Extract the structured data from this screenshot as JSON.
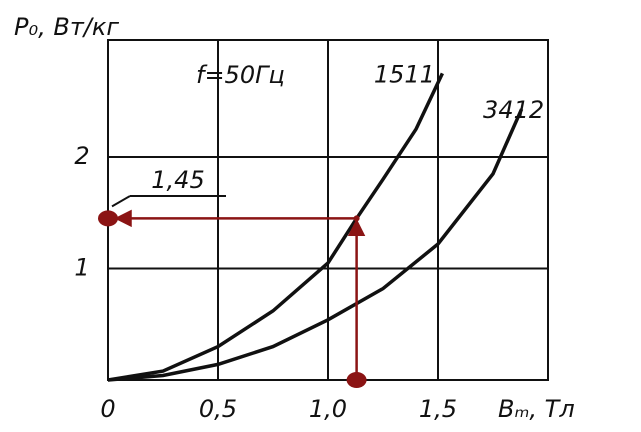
{
  "chart_data": {
    "type": "line",
    "y_label": "P₀, Вт/кг",
    "x_label": "Bₘ, Тл",
    "note": "f=50Гц",
    "xlim": [
      0,
      2.0
    ],
    "ylim": [
      0,
      3.05
    ],
    "xticks": [
      0,
      {
        "value": 0.5,
        "label": "0,5"
      },
      {
        "value": 1.0,
        "label": "1,0"
      },
      {
        "value": 1.5,
        "label": "1,5"
      }
    ],
    "yticks": [
      1,
      2
    ],
    "grid": true,
    "series": [
      {
        "name": "1511",
        "color": "#111111",
        "x": [
          0,
          0.25,
          0.5,
          0.75,
          1.0,
          1.13,
          1.25,
          1.4,
          1.52
        ],
        "values": [
          0,
          0.08,
          0.3,
          0.62,
          1.05,
          1.45,
          1.8,
          2.25,
          2.75
        ]
      },
      {
        "name": "3412",
        "color": "#111111",
        "x": [
          0,
          0.25,
          0.5,
          0.75,
          1.0,
          1.25,
          1.5,
          1.75,
          1.88
        ],
        "values": [
          0,
          0.04,
          0.14,
          0.3,
          0.54,
          0.82,
          1.22,
          1.85,
          2.43
        ]
      }
    ],
    "annotation": {
      "x": 1.13,
      "y": 1.45,
      "label": "1,45",
      "color": "#8b1414"
    }
  }
}
